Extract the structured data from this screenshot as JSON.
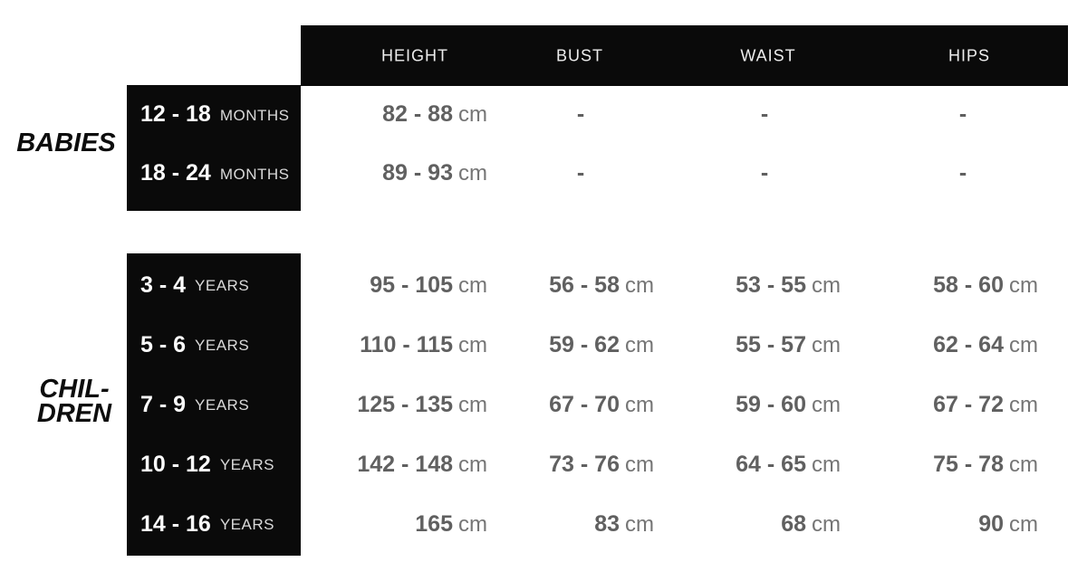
{
  "header": {
    "columns": [
      {
        "label": "HEIGHT"
      },
      {
        "label": "BUST"
      },
      {
        "label": "WAIST"
      },
      {
        "label": "HIPS"
      }
    ]
  },
  "babies": {
    "group_label": "BABIES",
    "rows": [
      {
        "range": "12 - 18",
        "unit_word": "MONTHS",
        "height": {
          "num": "82 - 88",
          "unit": "cm"
        },
        "bust": {
          "num": "-",
          "unit": ""
        },
        "waist": {
          "num": "-",
          "unit": ""
        },
        "hips": {
          "num": "-",
          "unit": ""
        }
      },
      {
        "range": "18 - 24",
        "unit_word": "MONTHS",
        "height": {
          "num": "89 - 93",
          "unit": "cm"
        },
        "bust": {
          "num": "-",
          "unit": ""
        },
        "waist": {
          "num": "-",
          "unit": ""
        },
        "hips": {
          "num": "-",
          "unit": ""
        }
      }
    ]
  },
  "children": {
    "group_label_line1": "CHIL-",
    "group_label_line2": "DREN",
    "rows": [
      {
        "range": "3 - 4",
        "unit_word": "YEARS",
        "height": {
          "num": "95 - 105",
          "unit": "cm"
        },
        "bust": {
          "num": "56 - 58",
          "unit": "cm"
        },
        "waist": {
          "num": "53 - 55",
          "unit": "cm"
        },
        "hips": {
          "num": "58 - 60",
          "unit": "cm"
        }
      },
      {
        "range": "5 - 6",
        "unit_word": "YEARS",
        "height": {
          "num": "110 - 115",
          "unit": "cm"
        },
        "bust": {
          "num": "59 - 62",
          "unit": "cm"
        },
        "waist": {
          "num": "55 - 57",
          "unit": "cm"
        },
        "hips": {
          "num": "62 - 64",
          "unit": "cm"
        }
      },
      {
        "range": "7 - 9",
        "unit_word": "YEARS",
        "height": {
          "num": "125 - 135",
          "unit": "cm"
        },
        "bust": {
          "num": "67 - 70",
          "unit": "cm"
        },
        "waist": {
          "num": "59 - 60",
          "unit": "cm"
        },
        "hips": {
          "num": "67 - 72",
          "unit": "cm"
        }
      },
      {
        "range": "10 - 12",
        "unit_word": "YEARS",
        "height": {
          "num": "142 - 148",
          "unit": "cm"
        },
        "bust": {
          "num": "73 - 76",
          "unit": "cm"
        },
        "waist": {
          "num": "64 - 65",
          "unit": "cm"
        },
        "hips": {
          "num": "75 - 78",
          "unit": "cm"
        }
      },
      {
        "range": "14 - 16",
        "unit_word": "YEARS",
        "height": {
          "num": "165",
          "unit": "cm"
        },
        "bust": {
          "num": "83",
          "unit": "cm"
        },
        "waist": {
          "num": "68",
          "unit": "cm"
        },
        "hips": {
          "num": "90",
          "unit": "cm"
        }
      }
    ]
  },
  "colors": {
    "box_black": "#0a0a0a",
    "header_text": "#ededed",
    "range_white": "#fcfcfc",
    "unit_word_gray": "#d9d9d9",
    "value_gray": "#606060",
    "unit_gray": "#757575",
    "group_label_black": "#0d0d0d",
    "background": "#ffffff"
  }
}
